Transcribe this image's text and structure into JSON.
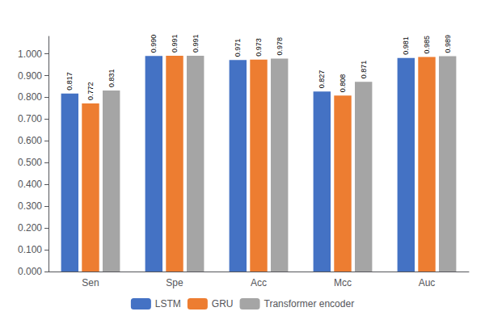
{
  "chart_data": {
    "type": "bar",
    "categories": [
      "Sen",
      "Spe",
      "Acc",
      "Mcc",
      "Auc"
    ],
    "series": [
      {
        "name": "LSTM",
        "color": "#4472C4",
        "values": [
          0.817,
          0.99,
          0.971,
          0.827,
          0.981
        ],
        "value_labels": [
          "0.817",
          "0.990",
          "0.971",
          "0.827",
          "0.981"
        ]
      },
      {
        "name": "GRU",
        "color": "#ED7D31",
        "values": [
          0.772,
          0.991,
          0.973,
          0.808,
          0.985
        ],
        "value_labels": [
          "0.772",
          "0.991",
          "0.973",
          "0.808",
          "0.985"
        ]
      },
      {
        "name": "Transformer encoder",
        "color": "#A5A5A5",
        "values": [
          0.831,
          0.991,
          0.978,
          0.871,
          0.989
        ],
        "value_labels": [
          "0.831",
          "0.991",
          "0.978",
          "0.871",
          "0.989"
        ]
      }
    ],
    "ylim": [
      0.0,
      1.08
    ],
    "yticks": [
      {
        "value": 0.0,
        "label": "0.000"
      },
      {
        "value": 0.1,
        "label": "0.100"
      },
      {
        "value": 0.2,
        "label": "0.200"
      },
      {
        "value": 0.3,
        "label": "0.300"
      },
      {
        "value": 0.4,
        "label": "0.400"
      },
      {
        "value": 0.5,
        "label": "0.500"
      },
      {
        "value": 0.6,
        "label": "0.600"
      },
      {
        "value": 0.7,
        "label": "0.700"
      },
      {
        "value": 0.8,
        "label": "0.800"
      },
      {
        "value": 0.9,
        "label": "0.900"
      },
      {
        "value": 1.0,
        "label": "1.000"
      }
    ],
    "grid": false,
    "legend": "bottom",
    "data_labels": true
  }
}
